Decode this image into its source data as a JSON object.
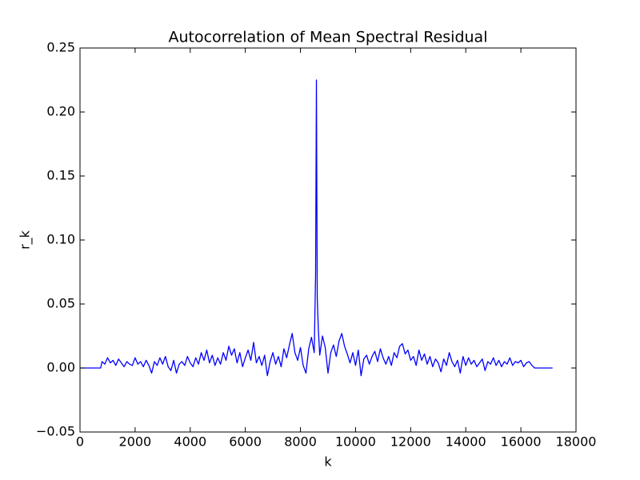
{
  "chart_data": {
    "type": "line",
    "title": "Autocorrelation of Mean Spectral Residual",
    "x_label": "k",
    "y_label": "r_k",
    "xlim": [
      0,
      18000
    ],
    "ylim": [
      -0.05,
      0.25
    ],
    "xticks": [
      0,
      2000,
      4000,
      6000,
      8000,
      10000,
      12000,
      14000,
      16000,
      18000
    ],
    "yticks": [
      {
        "value": -0.05,
        "label": "−0.05"
      },
      {
        "value": 0,
        "label": "0.00"
      },
      {
        "value": 0.05,
        "label": "0.05"
      },
      {
        "value": 0.1,
        "label": "0.10"
      },
      {
        "value": 0.15,
        "label": "0.15"
      },
      {
        "value": 0.2,
        "label": "0.20"
      },
      {
        "value": 0.25,
        "label": "0.25"
      }
    ],
    "grid": false,
    "series": [
      {
        "name": "r_k",
        "color": "#0000ff",
        "x": [
          0,
          750,
          800,
          900,
          1000,
          1100,
          1200,
          1300,
          1400,
          1500,
          1600,
          1700,
          1800,
          1900,
          2000,
          2100,
          2200,
          2300,
          2400,
          2500,
          2600,
          2700,
          2800,
          2900,
          3000,
          3100,
          3200,
          3300,
          3400,
          3500,
          3600,
          3700,
          3800,
          3900,
          4000,
          4100,
          4200,
          4300,
          4400,
          4500,
          4600,
          4700,
          4800,
          4900,
          5000,
          5100,
          5200,
          5300,
          5400,
          5500,
          5600,
          5700,
          5800,
          5900,
          6000,
          6100,
          6200,
          6300,
          6400,
          6500,
          6600,
          6700,
          6800,
          6900,
          7000,
          7100,
          7200,
          7300,
          7400,
          7500,
          7600,
          7700,
          7800,
          7900,
          8000,
          8100,
          8200,
          8300,
          8400,
          8500,
          8550,
          8580,
          8610,
          8650,
          8700,
          8800,
          8900,
          9000,
          9100,
          9200,
          9300,
          9400,
          9500,
          9600,
          9700,
          9800,
          9900,
          10000,
          10100,
          10200,
          10300,
          10400,
          10500,
          10600,
          10700,
          10800,
          10900,
          11000,
          11100,
          11200,
          11300,
          11400,
          11500,
          11600,
          11700,
          11800,
          11900,
          12000,
          12100,
          12200,
          12300,
          12400,
          12500,
          12600,
          12700,
          12800,
          12900,
          13000,
          13100,
          13200,
          13300,
          13400,
          13500,
          13600,
          13700,
          13800,
          13900,
          14000,
          14100,
          14200,
          14300,
          14400,
          14500,
          14600,
          14700,
          14800,
          14900,
          15000,
          15100,
          15200,
          15300,
          15400,
          15500,
          15600,
          15700,
          15800,
          15900,
          16000,
          16100,
          16200,
          16300,
          16400,
          16500,
          17150
        ],
        "values": [
          0,
          0,
          0.005,
          0.003,
          0.008,
          0.004,
          0.006,
          0.002,
          0.007,
          0.004,
          0.001,
          0.005,
          0.003,
          0.002,
          0.008,
          0.003,
          0.005,
          0.001,
          0.006,
          0.002,
          -0.004,
          0.005,
          0.002,
          0.008,
          0.003,
          0.009,
          0.001,
          -0.002,
          0.006,
          -0.004,
          0.003,
          0.005,
          0.002,
          0.009,
          0.004,
          0.001,
          0.008,
          0.003,
          0.012,
          0.006,
          0.014,
          0.004,
          0.01,
          0.002,
          0.008,
          0.003,
          0.012,
          0.006,
          0.017,
          0.01,
          0.015,
          0.004,
          0.012,
          0.001,
          0.008,
          0.014,
          0.006,
          0.02,
          0.004,
          0.009,
          0.002,
          0.01,
          -0.006,
          0.005,
          0.012,
          0.003,
          0.009,
          0.001,
          0.015,
          0.008,
          0.018,
          0.027,
          0.012,
          0.006,
          0.016,
          0.002,
          -0.004,
          0.015,
          0.024,
          0.012,
          0.073,
          0.225,
          0.055,
          0.03,
          0.01,
          0.025,
          0.016,
          -0.004,
          0.012,
          0.018,
          0.009,
          0.021,
          0.027,
          0.017,
          0.011,
          0.004,
          0.012,
          0.002,
          0.014,
          -0.006,
          0.007,
          0.01,
          0.003,
          0.009,
          0.013,
          0.005,
          0.015,
          0.008,
          0.003,
          0.009,
          0.002,
          0.012,
          0.008,
          0.017,
          0.019,
          0.011,
          0.014,
          0.006,
          0.009,
          0.002,
          0.014,
          0.006,
          0.011,
          0.003,
          0.009,
          0.001,
          0.007,
          0.004,
          -0.003,
          0.007,
          0.002,
          0.012,
          0.005,
          0.001,
          0.006,
          -0.004,
          0.009,
          0.002,
          0.008,
          0.003,
          0.006,
          0.001,
          0.004,
          0.007,
          -0.002,
          0.005,
          0.003,
          0.008,
          0.002,
          0.006,
          0.001,
          0.005,
          0.003,
          0.008,
          0.002,
          0.005,
          0.004,
          0.006,
          0.001,
          0.004,
          0.005,
          0.002,
          0,
          0
        ]
      }
    ]
  }
}
